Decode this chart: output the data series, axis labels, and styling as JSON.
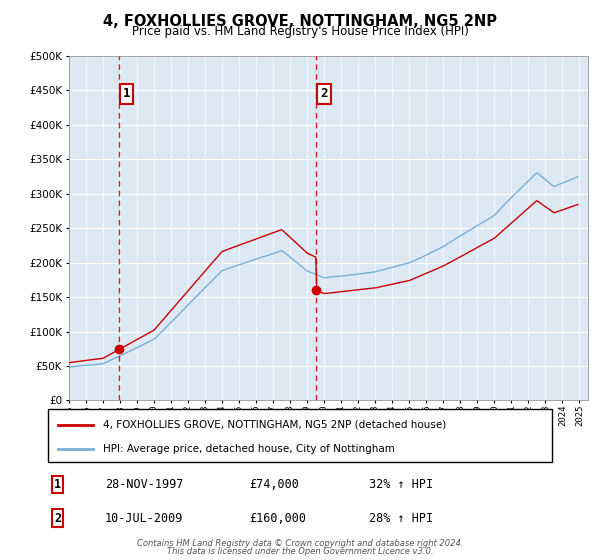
{
  "title": "4, FOXHOLLIES GROVE, NOTTINGHAM, NG5 2NP",
  "subtitle": "Price paid vs. HM Land Registry's House Price Index (HPI)",
  "legend_line1": "4, FOXHOLLIES GROVE, NOTTINGHAM, NG5 2NP (detached house)",
  "legend_line2": "HPI: Average price, detached house, City of Nottingham",
  "annotation1_label": "1",
  "annotation1_date": "28-NOV-1997",
  "annotation1_price": "£74,000",
  "annotation1_hpi": "32% ↑ HPI",
  "annotation1_year": 1997.91,
  "annotation1_value": 74000,
  "annotation2_label": "2",
  "annotation2_date": "10-JUL-2009",
  "annotation2_price": "£160,000",
  "annotation2_hpi": "28% ↑ HPI",
  "annotation2_year": 2009.53,
  "annotation2_value": 160000,
  "footer_line1": "Contains HM Land Registry data © Crown copyright and database right 2024.",
  "footer_line2": "This data is licensed under the Open Government Licence v3.0.",
  "red_color": "#cc0000",
  "blue_color": "#7bafd4",
  "bg_color": "#dce9f5",
  "ylim_min": 0,
  "ylim_max": 500000,
  "xlim_min": 1995.0,
  "xlim_max": 2025.5
}
